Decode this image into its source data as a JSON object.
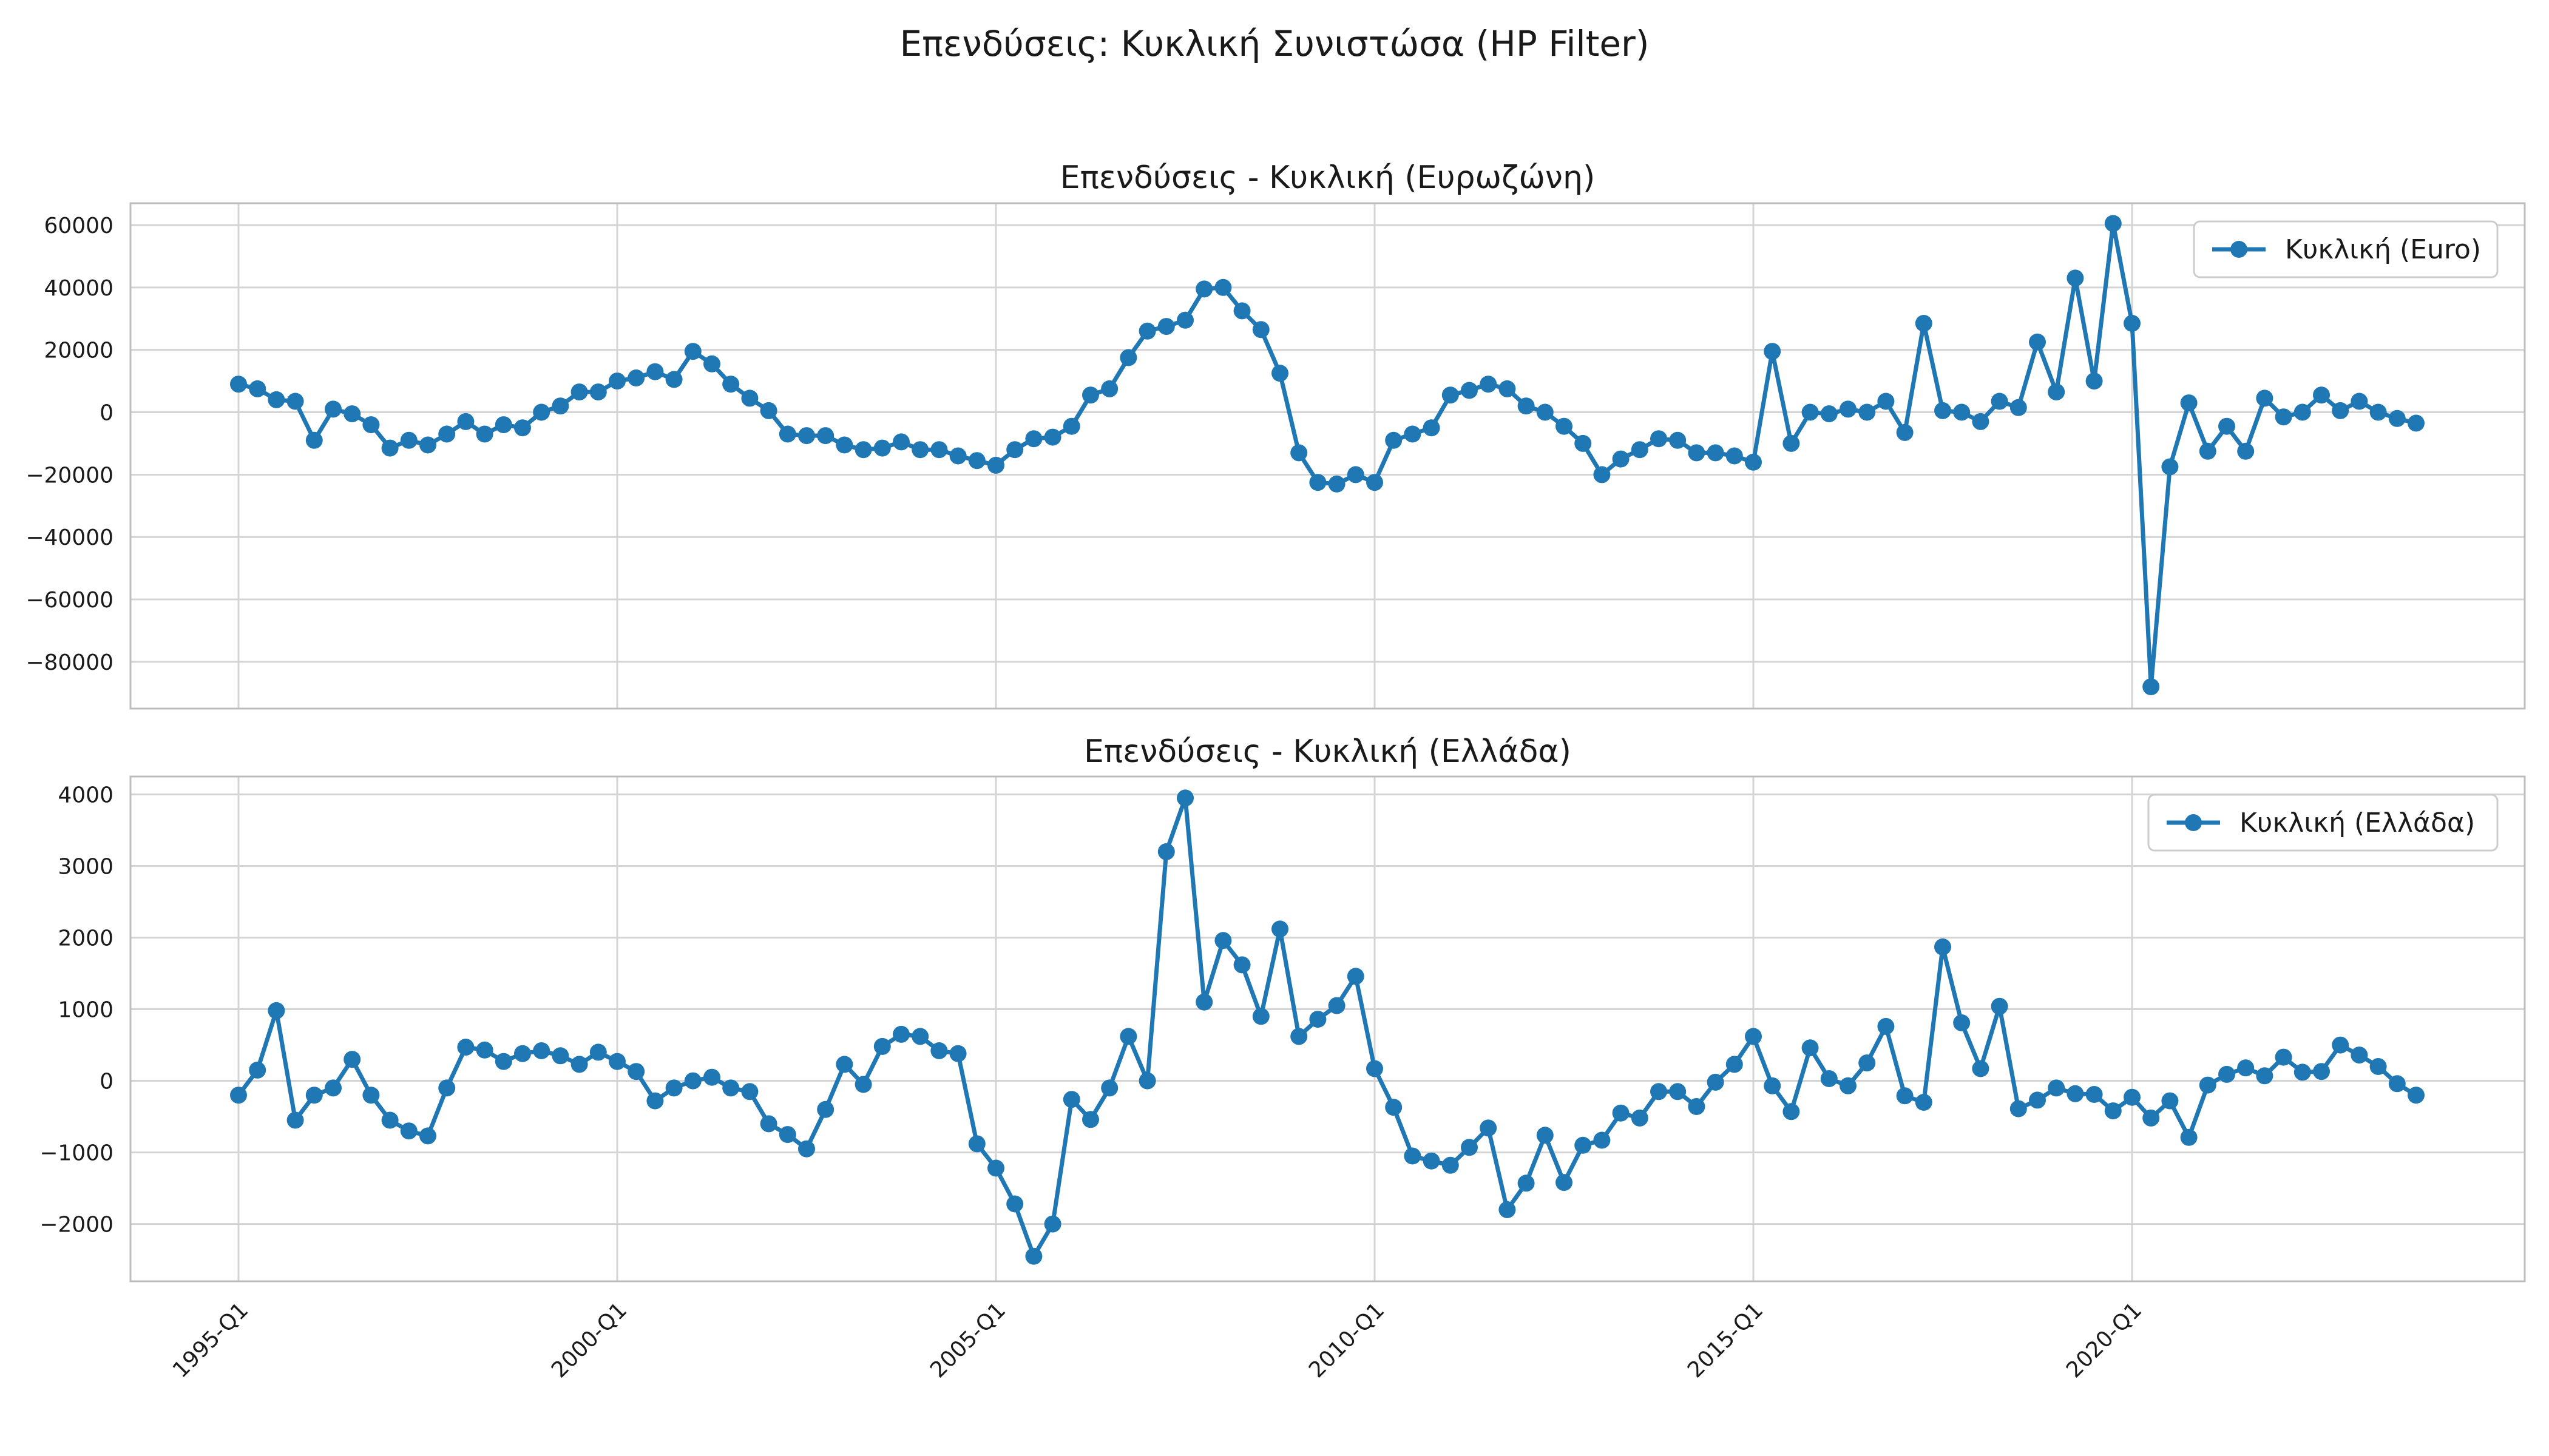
{
  "suptitle": "Επενδύσεις: Κυκλική Συνιστώσα (HP Filter)",
  "colors": {
    "series": "#1f77b4",
    "grid": "#d4d4d4",
    "frame": "#bdbdbd"
  },
  "chart_data": [
    {
      "type": "line",
      "title": "Επενδύσεις - Κυκλική (Ευρωζώνη)",
      "xlabel": "",
      "ylabel": "",
      "ylim": [
        -95000,
        67000
      ],
      "yticks": [
        60000,
        40000,
        20000,
        0,
        -20000,
        -40000,
        -60000,
        -80000
      ],
      "ytick_labels": [
        "60000",
        "40000",
        "20000",
        "0",
        "−20000",
        "−40000",
        "−60000",
        "−80000"
      ],
      "legend_loc": "upper right",
      "grid": true,
      "series": [
        {
          "name": "Κυκλική (Euro)",
          "values": [
            9000,
            7500,
            4000,
            3500,
            -9000,
            1000,
            -500,
            -4000,
            -11500,
            -9000,
            -10500,
            -7000,
            -3000,
            -7000,
            -4000,
            -5000,
            0,
            2000,
            6500,
            6500,
            10000,
            11000,
            13000,
            10500,
            19500,
            15500,
            9000,
            4500,
            500,
            -7000,
            -7500,
            -7500,
            -10500,
            -12000,
            -11500,
            -9500,
            -12000,
            -12000,
            -14000,
            -15500,
            -17000,
            -12000,
            -8500,
            -8000,
            -4500,
            5500,
            7500,
            17500,
            26000,
            27500,
            29500,
            39500,
            40000,
            32500,
            26500,
            12500,
            -13000,
            -22500,
            -23000,
            -20000,
            -22500,
            -9000,
            -7000,
            -5000,
            5500,
            7000,
            9000,
            7500,
            2000,
            0,
            -4500,
            -10000,
            -20000,
            -15000,
            -12000,
            -8500,
            -9000,
            -13000,
            -13000,
            -14000,
            -16000,
            19500,
            -10000,
            0,
            -500,
            1000,
            0,
            3500,
            -6500,
            28500,
            500,
            0,
            -3000,
            3500,
            1500,
            22500,
            6500,
            43000,
            10000,
            60500,
            28500,
            -88000,
            -17500,
            3000,
            -12500,
            -4500,
            -12500,
            4500,
            -1500,
            0,
            5500,
            500,
            3500,
            0,
            -2000,
            -3500
          ]
        }
      ]
    },
    {
      "type": "line",
      "title": "Επενδύσεις - Κυκλική (Ελλάδα)",
      "xlabel": "",
      "ylabel": "",
      "ylim": [
        -2800,
        4250
      ],
      "yticks": [
        4000,
        3000,
        2000,
        1000,
        0,
        -1000,
        -2000
      ],
      "ytick_labels": [
        "4000",
        "3000",
        "2000",
        "1000",
        "0",
        "−1000",
        "−2000"
      ],
      "legend_loc": "upper right",
      "grid": true,
      "x_tick_labels": [
        "1995-Q1",
        "2000-Q1",
        "2005-Q1",
        "2010-Q1",
        "2015-Q1",
        "2020-Q1"
      ],
      "series": [
        {
          "name": "Κυκλική (Ελλάδα)",
          "values": [
            -200,
            150,
            980,
            -550,
            -200,
            -100,
            300,
            -200,
            -550,
            -700,
            -770,
            -100,
            470,
            430,
            270,
            380,
            420,
            350,
            230,
            400,
            270,
            130,
            -280,
            -100,
            0,
            50,
            -100,
            -150,
            -600,
            -750,
            -950,
            -400,
            230,
            -50,
            480,
            650,
            620,
            420,
            380,
            -880,
            -1220,
            -1720,
            -2450,
            -2000,
            -260,
            -540,
            -100,
            620,
            0,
            3200,
            3950,
            1100,
            1960,
            1620,
            900,
            2120,
            620,
            860,
            1050,
            1460,
            170,
            -370,
            -1050,
            -1120,
            -1180,
            -930,
            -660,
            -1800,
            -1430,
            -760,
            -1420,
            -900,
            -830,
            -450,
            -520,
            -150,
            -150,
            -360,
            -20,
            230,
            620,
            -70,
            -430,
            460,
            30,
            -70,
            250,
            760,
            -210,
            -300,
            1870,
            810,
            170,
            1040,
            -390,
            -270,
            -100,
            -180,
            -190,
            -420,
            -230,
            -520,
            -280,
            -790,
            -60,
            90,
            180,
            70,
            330,
            120,
            130,
            500,
            360,
            200,
            -40,
            -200
          ]
        }
      ]
    }
  ]
}
